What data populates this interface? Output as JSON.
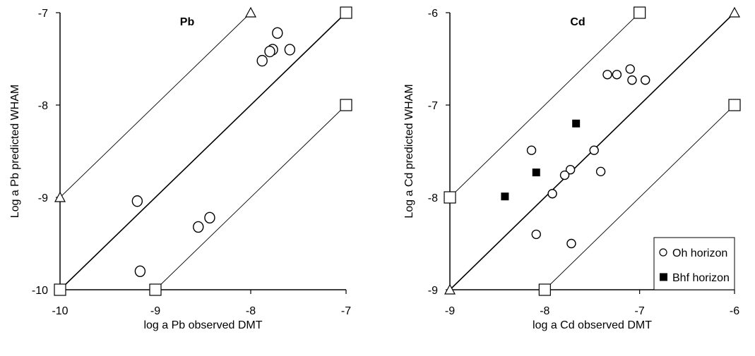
{
  "chart_data": [
    {
      "type": "scatter",
      "title": "Pb",
      "xlabel": "log a Pb observed DMT",
      "ylabel": "Log a Pb predicted  WHAM",
      "xlim": [
        -10,
        -7
      ],
      "ylim": [
        -10,
        -7
      ],
      "xticks": [
        "-10",
        "-9",
        "-8",
        "-7"
      ],
      "yticks": [
        "-10",
        "-9",
        "-8",
        "-7"
      ],
      "grid": false,
      "series": [
        {
          "marker": "open-circle",
          "x": [
            -7.72,
            -7.77,
            -7.8,
            -7.88,
            -7.59,
            -9.19,
            -9.16,
            -8.55,
            -8.43
          ],
          "y": [
            -7.22,
            -7.4,
            -7.42,
            -7.52,
            -7.4,
            -9.04,
            -9.8,
            -9.32,
            -9.22
          ]
        }
      ],
      "lines": [
        {
          "style": "solid",
          "x": [
            -10,
            -7
          ],
          "y": [
            -10,
            -7
          ]
        },
        {
          "style": "thin",
          "x": [
            -10,
            -8
          ],
          "y": [
            -9,
            -7
          ]
        },
        {
          "style": "thin",
          "x": [
            -9,
            -7
          ],
          "y": [
            -10,
            -8
          ]
        }
      ],
      "end_markers": [
        {
          "shape": "triangle",
          "x": -8,
          "y": -7
        },
        {
          "shape": "square",
          "x": -7,
          "y": -7
        },
        {
          "shape": "triangle",
          "x": -10,
          "y": -9
        },
        {
          "shape": "square",
          "x": -7,
          "y": -8
        },
        {
          "shape": "square",
          "x": -10,
          "y": -10
        },
        {
          "shape": "square",
          "x": -9,
          "y": -10
        }
      ]
    },
    {
      "type": "scatter",
      "title": "Cd",
      "xlabel": "log a Cd observed DMT",
      "ylabel": "Log a Cd predicted WHAM",
      "xlim": [
        -9,
        -6
      ],
      "ylim": [
        -9,
        -6
      ],
      "xticks": [
        "-9",
        "-8",
        "-7",
        "-6"
      ],
      "yticks": [
        "-9",
        "-8",
        "-7",
        "-6"
      ],
      "grid": false,
      "legend": "bottom-right",
      "series": [
        {
          "name": "Oh horizon",
          "marker": "open-circle",
          "x": [
            -7.34,
            -7.24,
            -7.1,
            -6.94,
            -7.08,
            -8.14,
            -7.48,
            -7.73,
            -7.79,
            -7.41,
            -7.92,
            -8.09,
            -7.72
          ],
          "y": [
            -6.67,
            -6.67,
            -6.61,
            -6.73,
            -6.73,
            -7.49,
            -7.49,
            -7.7,
            -7.76,
            -7.72,
            -7.96,
            -8.4,
            -8.5
          ]
        },
        {
          "name": "Bhf horizon",
          "marker": "filled-square",
          "x": [
            -7.67,
            -8.09,
            -8.42
          ],
          "y": [
            -7.2,
            -7.73,
            -7.99
          ]
        }
      ],
      "lines": [
        {
          "style": "solid",
          "x": [
            -9,
            -6
          ],
          "y": [
            -9,
            -6
          ]
        },
        {
          "style": "thin",
          "x": [
            -9,
            -7
          ],
          "y": [
            -8,
            -6
          ]
        },
        {
          "style": "thin",
          "x": [
            -8,
            -6
          ],
          "y": [
            -9,
            -7
          ]
        }
      ],
      "end_markers": [
        {
          "shape": "square",
          "x": -7,
          "y": -6
        },
        {
          "shape": "triangle",
          "x": -6,
          "y": -6
        },
        {
          "shape": "square",
          "x": -9,
          "y": -8
        },
        {
          "shape": "square",
          "x": -6,
          "y": -7
        },
        {
          "shape": "triangle",
          "x": -9,
          "y": -9
        },
        {
          "shape": "square",
          "x": -8,
          "y": -9
        }
      ]
    }
  ]
}
